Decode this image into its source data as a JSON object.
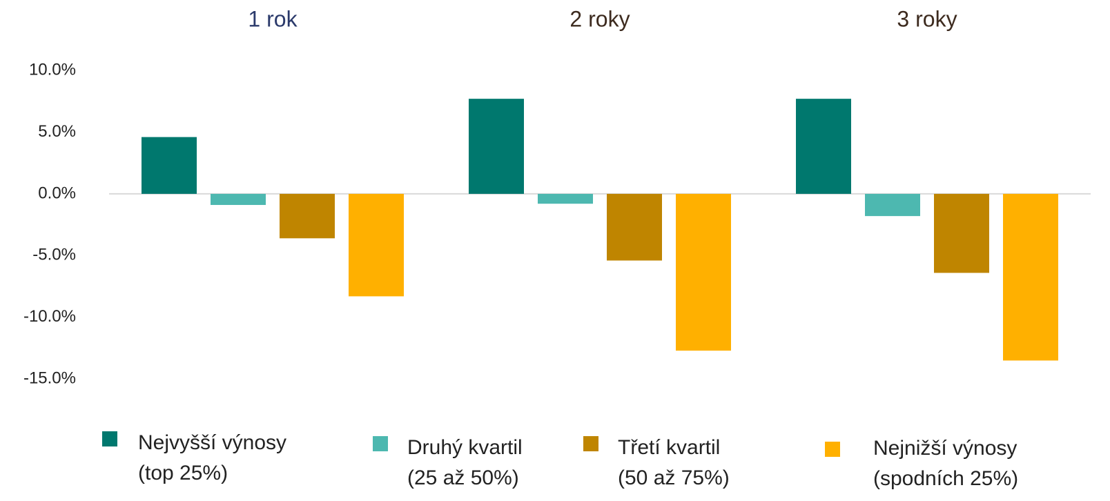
{
  "chart_data": {
    "type": "bar",
    "categories": [
      "1 rok",
      "2 roky",
      "3 roky"
    ],
    "category_label_colors": [
      "#2b3a6b",
      "#3d2b1f",
      "#3d2b1f"
    ],
    "series": [
      {
        "name": "Nejvyšší výnosy\n(top 25%)",
        "color": "#00786e",
        "values": [
          4.6,
          7.7,
          7.7
        ]
      },
      {
        "name": "Druhý kvartil\n(25 až 50%)",
        "color": "#4db8b0",
        "values": [
          -0.9,
          -0.8,
          -1.8
        ]
      },
      {
        "name": "Třetí kvartil\n(50 až 75%)",
        "color": "#bf8500",
        "values": [
          -3.6,
          -5.4,
          -6.4
        ]
      },
      {
        "name": "Nejnižší výnosy\n(spodních 25%)",
        "color": "#ffb000",
        "values": [
          -8.3,
          -12.7,
          -13.5
        ]
      }
    ],
    "ylim": [
      -17.5,
      10
    ],
    "yticks": [
      {
        "value": 10,
        "label": "10.0%"
      },
      {
        "value": 5,
        "label": "5.0%"
      },
      {
        "value": 0,
        "label": "0.0%"
      },
      {
        "value": -5,
        "label": "-5.0%"
      },
      {
        "value": -10,
        "label": "-10.0%"
      },
      {
        "value": -15,
        "label": "-15.0%"
      }
    ],
    "grid": false
  }
}
